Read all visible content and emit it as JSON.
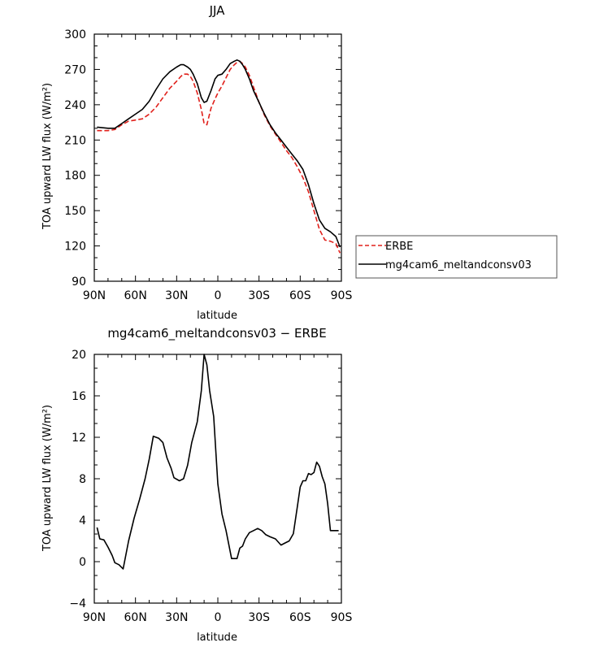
{
  "chart_data": [
    {
      "type": "line",
      "title": "JJA",
      "xlabel": "latitude",
      "ylabel": "TOA upward LW flux (W/m²)",
      "xlim": [
        90,
        -90
      ],
      "ylim": [
        90,
        300
      ],
      "xticks": [
        {
          "value": 90,
          "label": "90N"
        },
        {
          "value": 60,
          "label": "60N"
        },
        {
          "value": 30,
          "label": "30N"
        },
        {
          "value": 0,
          "label": "0"
        },
        {
          "value": -30,
          "label": "30S"
        },
        {
          "value": -60,
          "label": "60S"
        },
        {
          "value": -90,
          "label": "90S"
        }
      ],
      "yticks": [
        90,
        120,
        150,
        180,
        210,
        240,
        270,
        300
      ],
      "legend": {
        "placement": "outside-right"
      },
      "series": [
        {
          "name": "ERBE",
          "color": "#e0201b",
          "dash": "dashed",
          "x": [
            88,
            80,
            75,
            70,
            65,
            60,
            55,
            50,
            45,
            40,
            35,
            30,
            27,
            25,
            22,
            20,
            18,
            15,
            12,
            10,
            8,
            5,
            2,
            0,
            -3,
            -6,
            -9,
            -12,
            -14,
            -16,
            -18,
            -20,
            -23,
            -26,
            -30,
            -34,
            -38,
            -42,
            -46,
            -50,
            -54,
            -58,
            -62,
            -66,
            -70,
            -74,
            -78,
            -82,
            -86,
            -89
          ],
          "y": [
            218,
            218,
            219,
            223,
            226,
            227,
            228,
            232,
            238,
            246,
            254,
            260,
            264,
            266,
            266,
            264,
            260,
            250,
            236,
            224,
            223,
            237,
            245,
            250,
            256,
            263,
            270,
            274,
            276,
            277,
            275,
            272,
            265,
            255,
            242,
            231,
            222,
            215,
            208,
            201,
            195,
            187,
            178,
            166,
            150,
            134,
            125,
            124,
            122,
            114
          ]
        },
        {
          "name": "mg4cam6_meltandconsv03",
          "color": "#000000",
          "dash": "solid",
          "x": [
            88,
            80,
            75,
            70,
            65,
            60,
            55,
            50,
            45,
            40,
            35,
            30,
            27,
            25,
            22,
            20,
            18,
            15,
            12,
            10,
            8,
            5,
            2,
            0,
            -3,
            -6,
            -9,
            -12,
            -14,
            -16,
            -18,
            -20,
            -23,
            -26,
            -30,
            -34,
            -38,
            -42,
            -46,
            -50,
            -54,
            -58,
            -62,
            -66,
            -70,
            -74,
            -78,
            -82,
            -86,
            -89
          ],
          "y": [
            221,
            220,
            220,
            224,
            228,
            232,
            236,
            243,
            253,
            262,
            268,
            272,
            274,
            274,
            272,
            270,
            266,
            258,
            246,
            242,
            243,
            252,
            262,
            265,
            266,
            270,
            275,
            277,
            278,
            277,
            274,
            270,
            262,
            252,
            242,
            232,
            223,
            216,
            210,
            204,
            198,
            192,
            185,
            172,
            156,
            142,
            135,
            132,
            128,
            119
          ]
        }
      ]
    },
    {
      "type": "line",
      "title": "mg4cam6_meltandconsv03 − ERBE",
      "xlabel": "latitude",
      "ylabel": "TOA upward LW flux (W/m²)",
      "xlim": [
        90,
        -90
      ],
      "ylim": [
        -4,
        20
      ],
      "xticks": [
        {
          "value": 90,
          "label": "90N"
        },
        {
          "value": 60,
          "label": "60N"
        },
        {
          "value": 30,
          "label": "30N"
        },
        {
          "value": 0,
          "label": "0"
        },
        {
          "value": -30,
          "label": "30S"
        },
        {
          "value": -60,
          "label": "60S"
        },
        {
          "value": -90,
          "label": "90S"
        }
      ],
      "yticks": [
        -4,
        0,
        4,
        8,
        12,
        16,
        20
      ],
      "series": [
        {
          "color": "#000000",
          "dash": "solid",
          "x": [
            88,
            86,
            83,
            80,
            77,
            75,
            72,
            69,
            65,
            61,
            57,
            53,
            50,
            47,
            43,
            40,
            37,
            34,
            32,
            28,
            25,
            22,
            19,
            15,
            12,
            10,
            8,
            6,
            3,
            0,
            -3,
            -6,
            -10,
            -14,
            -16,
            -18,
            -20,
            -23,
            -26,
            -29,
            -32,
            -35,
            -38,
            -42,
            -46,
            -49,
            -52,
            -55,
            -58,
            -60,
            -62,
            -64,
            -66,
            -68,
            -70,
            -72,
            -74,
            -76,
            -78,
            -80,
            -82,
            -84,
            -86,
            -88
          ],
          "y": [
            3.3,
            2.2,
            2.1,
            1.4,
            0.6,
            -0.1,
            -0.3,
            -0.7,
            2.0,
            4.2,
            6.0,
            8.0,
            9.9,
            12.1,
            11.9,
            11.5,
            10.0,
            9.0,
            8.1,
            7.8,
            8.0,
            9.3,
            11.5,
            13.5,
            16.5,
            20.0,
            19.0,
            16.5,
            14.0,
            7.5,
            4.6,
            3.0,
            0.3,
            0.3,
            1.3,
            1.5,
            2.2,
            2.8,
            3.0,
            3.2,
            3.0,
            2.6,
            2.4,
            2.2,
            1.6,
            1.8,
            2.0,
            2.7,
            5.4,
            7.2,
            7.8,
            7.8,
            8.5,
            8.4,
            8.6,
            9.6,
            9.2,
            8.2,
            7.5,
            5.6,
            3.0,
            3.0,
            3.0,
            3.0
          ]
        }
      ]
    }
  ]
}
